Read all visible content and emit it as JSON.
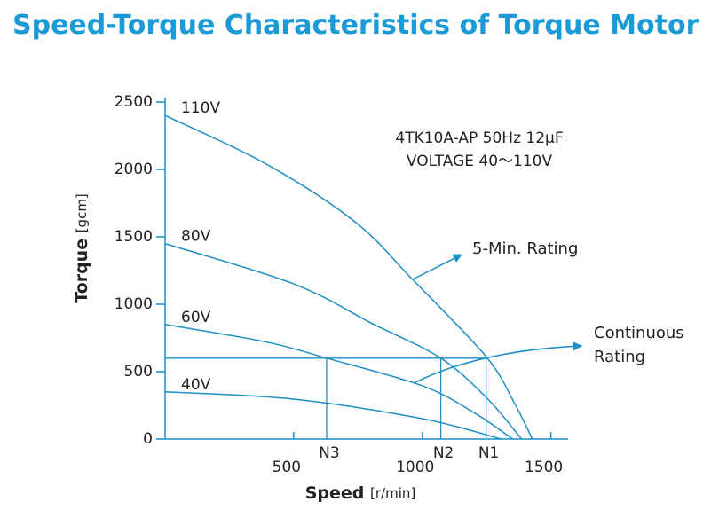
{
  "chart_data": {
    "type": "line",
    "title": "Speed-Torque Characteristics of Torque Motor",
    "x_label": "Speed",
    "x_unit": "[r/min]",
    "y_label": "Torque",
    "y_unit": "[gcm]",
    "model_lines": [
      "4TK10A-AP  50Hz 12μF",
      "VOLTAGE 40～110V"
    ],
    "annotation_five_min": "5-Min. Rating",
    "annotation_continuous": [
      "Continuous",
      "Rating"
    ],
    "color": "#1f8fc4",
    "xlim": [
      0,
      1560
    ],
    "ylim": [
      0,
      2500
    ],
    "xticks": [
      500,
      1000,
      1500
    ],
    "yticks": [
      0,
      500,
      1000,
      1500,
      2000,
      2500
    ],
    "series": [
      {
        "name": "110V",
        "x": [
          0,
          393,
          738,
          962,
          1248,
          1359,
          1428
        ],
        "values": [
          2400,
          2040,
          1612,
          1184,
          612,
          263,
          0
        ]
      },
      {
        "name": "80V",
        "x": [
          0,
          500,
          807,
          1072,
          1255,
          1386
        ],
        "values": [
          1450,
          1151,
          855,
          600,
          296,
          0
        ]
      },
      {
        "name": "60V",
        "x": [
          0,
          393,
          628,
          1000,
          1200,
          1352
        ],
        "values": [
          850,
          720,
          600,
          395,
          197,
          0
        ]
      },
      {
        "name": "40V",
        "x": [
          0,
          500,
          1000,
          1307
        ],
        "values": [
          350,
          296,
          151,
          0
        ]
      }
    ],
    "rating_torque": 600,
    "speed_points": [
      {
        "label": "N3",
        "value": 628
      },
      {
        "label": "N2",
        "value": 1072
      },
      {
        "label": "N1",
        "value": 1248
      }
    ]
  }
}
